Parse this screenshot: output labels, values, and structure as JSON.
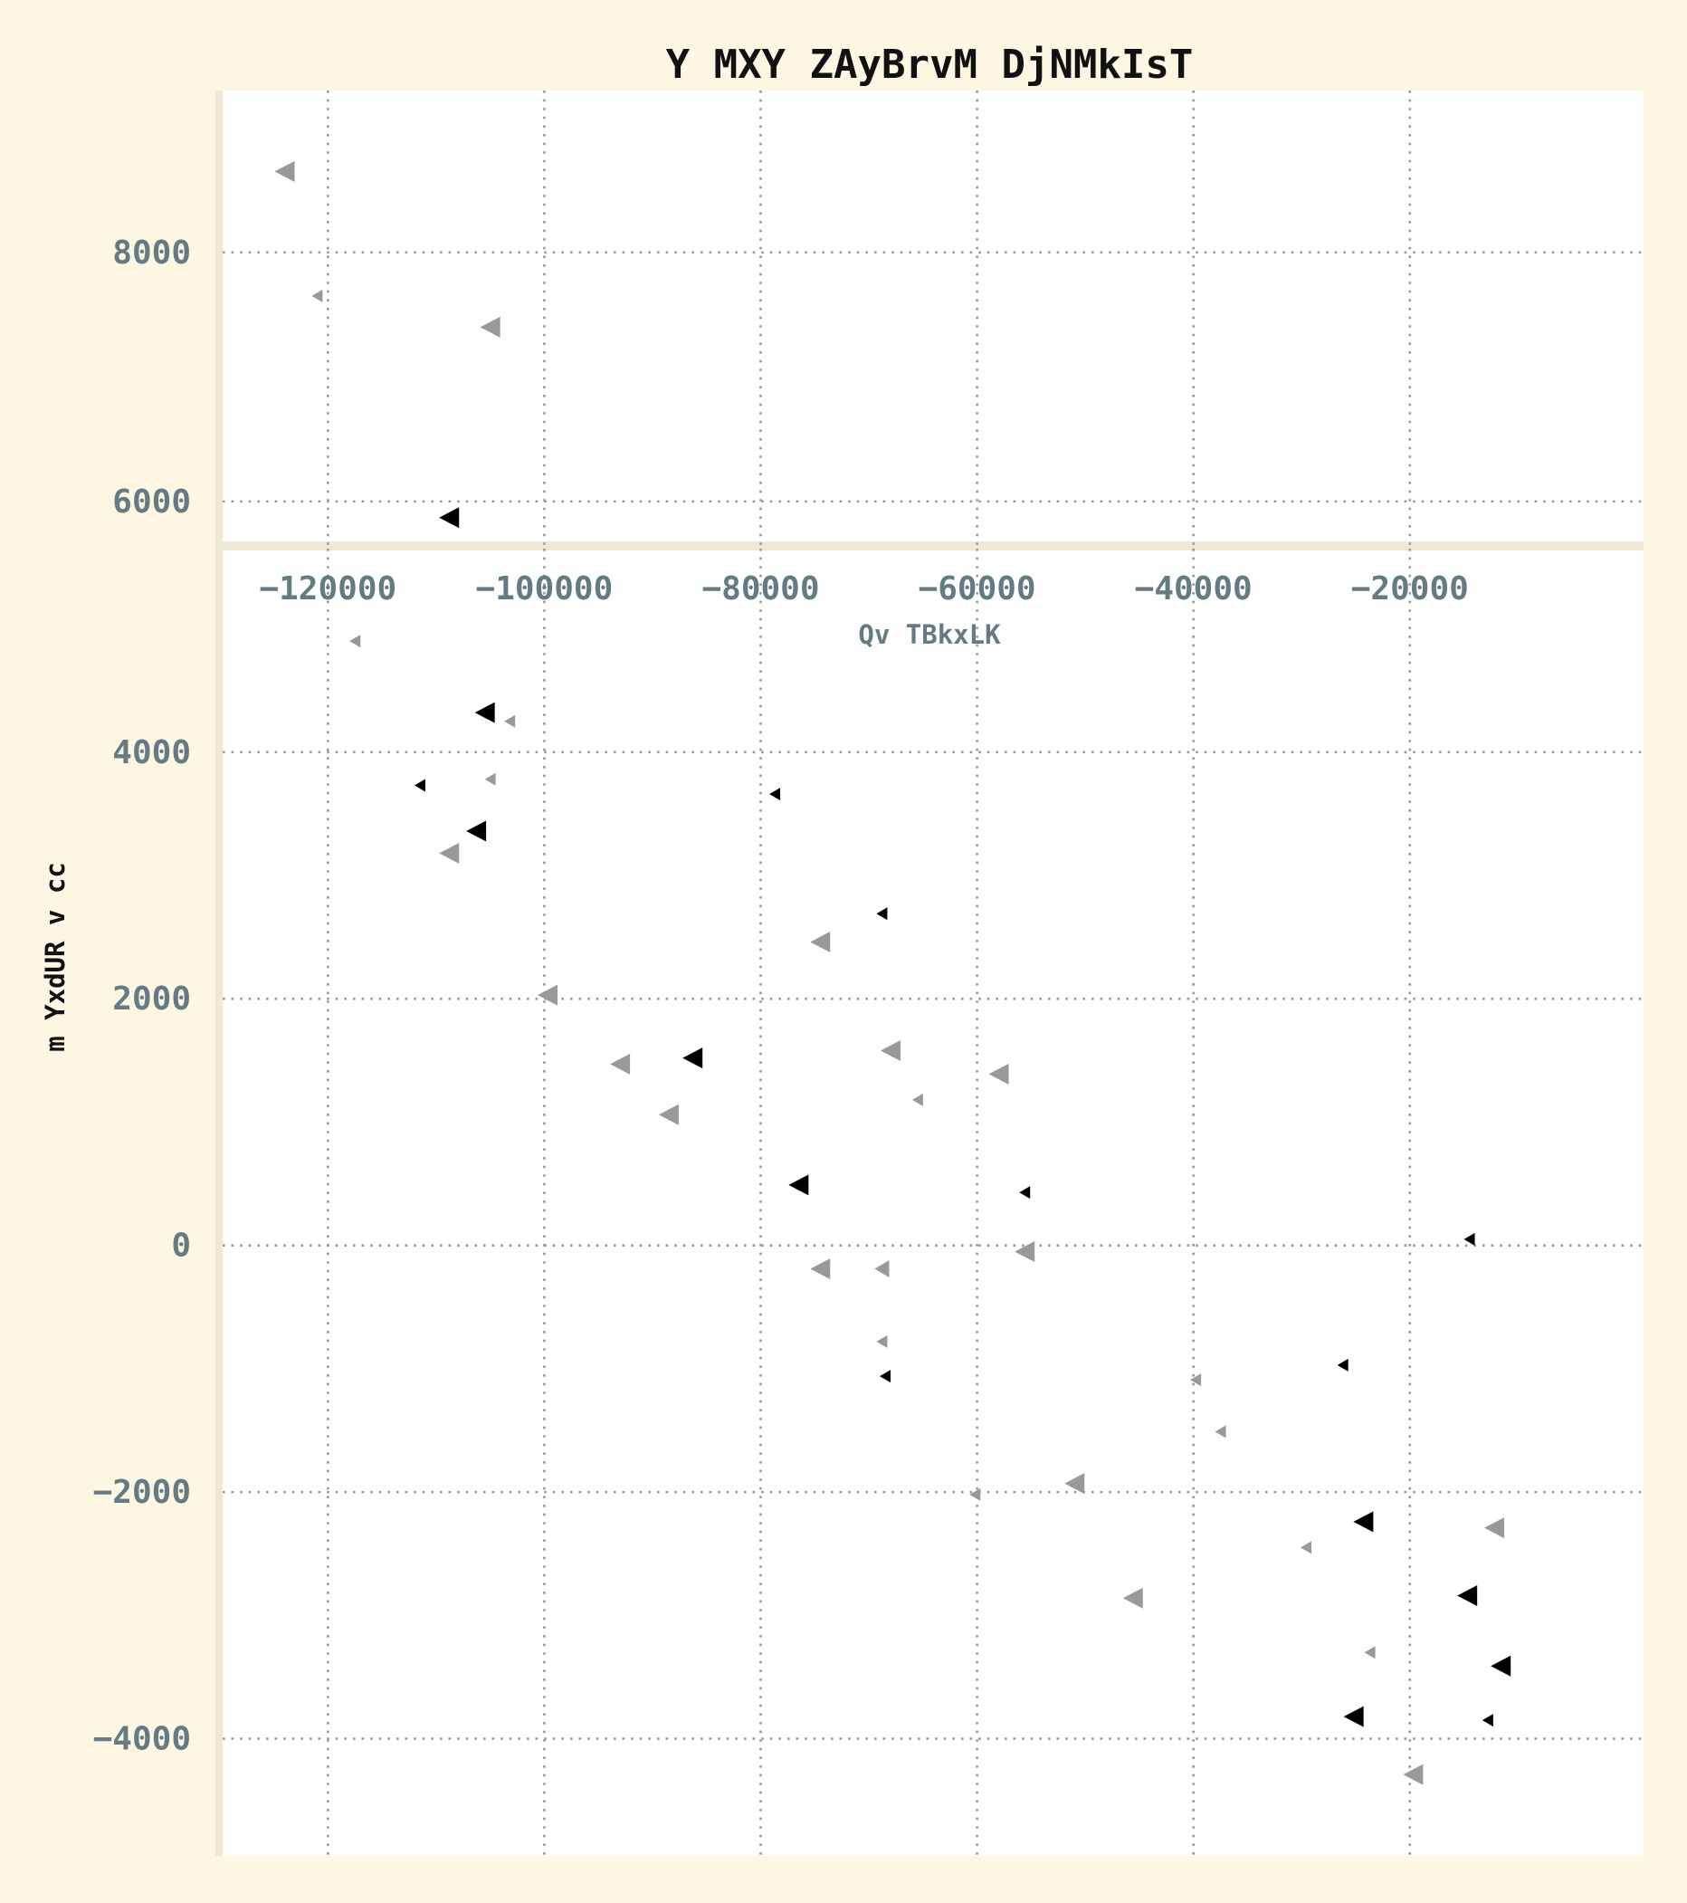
{
  "chart_data": {
    "type": "scatter",
    "title": "Y MXY ZAyBrvM DjNMkIsT",
    "xlabel": "Qv TBkxLK",
    "ylabel": "m YxdUR v cc",
    "grid": true,
    "marker": "triangle-left",
    "colors": {
      "gray_series": "#999999",
      "black_series": "#000000",
      "plot_bg": "#fefefe",
      "page_bg": "#fdf6e3",
      "tick_text": "#657b83"
    },
    "y_axis_break": [
      4950,
      5650
    ],
    "panels": [
      {
        "name": "upper",
        "xlim": [
          -130400,
          1600
        ],
        "ylim": [
          5650,
          9300
        ],
        "yticks": [
          6000,
          8000
        ],
        "yticklabels": [
          "6000",
          "8000"
        ]
      },
      {
        "name": "lower",
        "xlim": [
          -130400,
          1600
        ],
        "ylim": [
          -4950,
          5650
        ],
        "yticks": [
          -4000,
          -2000,
          0,
          2000,
          4000
        ],
        "yticklabels": [
          "−4000",
          "−2000",
          "0",
          "2000",
          "4000"
        ]
      }
    ],
    "xticks": [
      -120000,
      -100000,
      -80000,
      -60000,
      -40000,
      -20000
    ],
    "xticklabels": [
      "−120000",
      "−100000",
      "−80000",
      "−60000",
      "−40000",
      "−20000"
    ],
    "series": [
      {
        "color": "#999999",
        "points": [
          {
            "x": -124000,
            "y": 8650,
            "size": "l"
          },
          {
            "x": -121000,
            "y": 7650,
            "size": "s"
          },
          {
            "x": -105000,
            "y": 7400,
            "size": "l"
          },
          {
            "x": -117500,
            "y": 4900,
            "size": "s"
          },
          {
            "x": -103200,
            "y": 4250,
            "size": "s"
          },
          {
            "x": -105000,
            "y": 3780,
            "size": "s"
          },
          {
            "x": -108800,
            "y": 3180,
            "size": "l"
          },
          {
            "x": -99700,
            "y": 2030,
            "size": "l"
          },
          {
            "x": -74500,
            "y": 2460,
            "size": "l"
          },
          {
            "x": -93000,
            "y": 1470,
            "size": "l"
          },
          {
            "x": -88500,
            "y": 1060,
            "size": "l"
          },
          {
            "x": -68000,
            "y": 1580,
            "size": "l"
          },
          {
            "x": -65500,
            "y": 1180,
            "size": "s"
          },
          {
            "x": -58000,
            "y": 1390,
            "size": "l"
          },
          {
            "x": -74500,
            "y": -190,
            "size": "l"
          },
          {
            "x": -68800,
            "y": -190,
            "size": "m"
          },
          {
            "x": -55600,
            "y": -50,
            "size": "l"
          },
          {
            "x": -68800,
            "y": -780,
            "size": "s"
          },
          {
            "x": -39800,
            "y": -1090,
            "size": "s"
          },
          {
            "x": -37500,
            "y": -1510,
            "size": "s"
          },
          {
            "x": -51000,
            "y": -1930,
            "size": "l"
          },
          {
            "x": -60200,
            "y": -2020,
            "size": "s"
          },
          {
            "x": -45600,
            "y": -2860,
            "size": "l"
          },
          {
            "x": -29600,
            "y": -2450,
            "size": "s"
          },
          {
            "x": -23700,
            "y": -3300,
            "size": "s"
          },
          {
            "x": -12200,
            "y": -2290,
            "size": "l"
          },
          {
            "x": -19700,
            "y": -4290,
            "size": "l"
          }
        ]
      },
      {
        "color": "#000000",
        "points": [
          {
            "x": -108800,
            "y": 5870,
            "size": "l"
          },
          {
            "x": -105500,
            "y": 4320,
            "size": "l"
          },
          {
            "x": -111500,
            "y": 3730,
            "size": "s"
          },
          {
            "x": -106300,
            "y": 3360,
            "size": "l"
          },
          {
            "x": -78700,
            "y": 3660,
            "size": "s"
          },
          {
            "x": -68800,
            "y": 2690,
            "size": "s"
          },
          {
            "x": -86300,
            "y": 1520,
            "size": "l"
          },
          {
            "x": -76500,
            "y": 490,
            "size": "l"
          },
          {
            "x": -55600,
            "y": 430,
            "size": "s"
          },
          {
            "x": -14500,
            "y": 50,
            "size": "s"
          },
          {
            "x": -68500,
            "y": -1060,
            "size": "s"
          },
          {
            "x": -26200,
            "y": -970,
            "size": "s"
          },
          {
            "x": -24300,
            "y": -2240,
            "size": "l"
          },
          {
            "x": -14700,
            "y": -2840,
            "size": "l"
          },
          {
            "x": -11600,
            "y": -3410,
            "size": "l"
          },
          {
            "x": -25200,
            "y": -3820,
            "size": "l"
          },
          {
            "x": -12800,
            "y": -3850,
            "size": "s"
          }
        ]
      }
    ]
  }
}
